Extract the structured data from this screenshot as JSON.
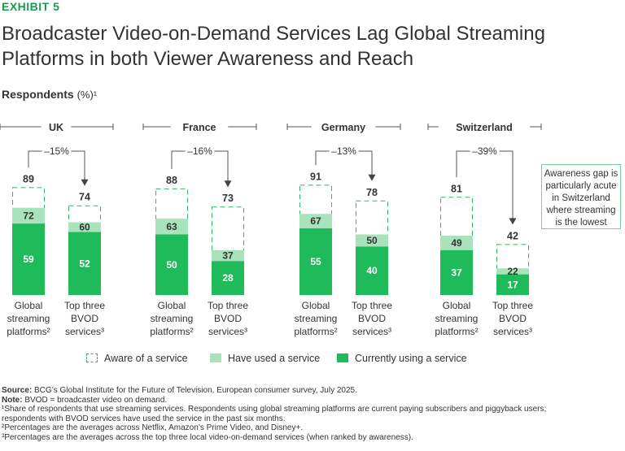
{
  "exhibit_label": "EXHIBIT 5",
  "title": "Broadcaster Video-on-Demand Services Lag Global Streaming Platforms in both Viewer Awareness and Reach",
  "subtitle": "Respondents",
  "subtitle_unit": "(%)¹",
  "callout": "Awareness gap is particularly acute in Switzerland where streaming is the lowest",
  "legend": {
    "aware": "Aware of a service",
    "used": "Have used a service",
    "current": "Currently using a service"
  },
  "colors": {
    "current": "#1fba5a",
    "used": "#a9e3bc",
    "aware_border": "#2db866",
    "accent": "#1a9a4e"
  },
  "chart_data": {
    "type": "bar",
    "stacked": true,
    "ylim": [
      0,
      100
    ],
    "series": [
      {
        "name": "Aware of a service",
        "key": "aware"
      },
      {
        "name": "Have used a service",
        "key": "used"
      },
      {
        "name": "Currently using a service",
        "key": "current"
      }
    ],
    "groups": [
      {
        "name": "UK",
        "gap": "–15%",
        "bars": [
          {
            "label": [
              "Global",
              "streaming",
              "platforms²"
            ],
            "aware": 89,
            "used": 72,
            "current": 59
          },
          {
            "label": [
              "Top three",
              "BVOD",
              "services³"
            ],
            "aware": 74,
            "used": 60,
            "current": 52
          }
        ]
      },
      {
        "name": "France",
        "gap": "–16%",
        "bars": [
          {
            "label": [
              "Global",
              "streaming",
              "platforms²"
            ],
            "aware": 88,
            "used": 63,
            "current": 50
          },
          {
            "label": [
              "Top three",
              "BVOD",
              "services³"
            ],
            "aware": 73,
            "used": 37,
            "current": 28
          }
        ]
      },
      {
        "name": "Germany",
        "gap": "–13%",
        "bars": [
          {
            "label": [
              "Global",
              "streaming",
              "platforms²"
            ],
            "aware": 91,
            "used": 67,
            "current": 55
          },
          {
            "label": [
              "Top three",
              "BVOD",
              "services³"
            ],
            "aware": 78,
            "used": 50,
            "current": 40
          }
        ]
      },
      {
        "name": "Switzerland",
        "gap": "–39%",
        "bars": [
          {
            "label": [
              "Global",
              "streaming",
              "platforms²"
            ],
            "aware": 81,
            "used": 49,
            "current": 37
          },
          {
            "label": [
              "Top three",
              "BVOD",
              "services³"
            ],
            "aware": 42,
            "used": 22,
            "current": 17
          }
        ]
      }
    ]
  },
  "notes": {
    "source_label": "Source:",
    "source": "BCG’s Global Institute for the Future of Television, European consumer survey, July 2025.",
    "note_label": "Note:",
    "note": "BVOD = broadcaster video on demand.",
    "footnote1a": "¹Share of respondents that use streaming services. Respondents using global streaming platforms are current paying subscribers and piggyback users;",
    "footnote1b": "respondents with BVOD services have used the service in the past six months.",
    "footnote2": "²Percentages are the averages across Netflix, Amazon’s Prime Video, and Disney+.",
    "footnote3": "³Percentages are the averages across the top three local video-on-demand services (when ranked by awareness)."
  }
}
